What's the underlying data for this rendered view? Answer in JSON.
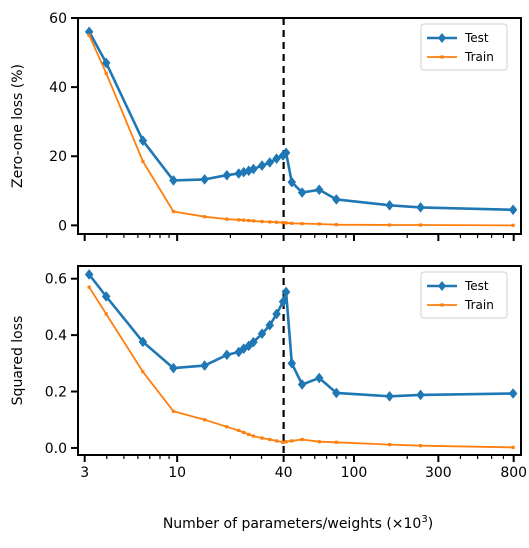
{
  "xlabel_prefix": "Number of parameters/weights (×10",
  "xlabel_exp": "3",
  "xlabel_suffix": ")",
  "colors": {
    "test": "#1f77b4",
    "train": "#ff7f0e",
    "vline": "#000000"
  },
  "chart_data": [
    {
      "type": "line",
      "title": "",
      "xlabel": "Number of parameters/weights (×10³)",
      "ylabel": "Zero-one loss (%)",
      "xscale": "log",
      "xlim": [
        2.75,
        880
      ],
      "ylim": [
        -2.5,
        60
      ],
      "yticks": [
        0,
        20,
        40,
        60
      ],
      "xticks": [
        3,
        10,
        40,
        100,
        300,
        800
      ],
      "xtick_labels_shown": false,
      "vline_x": 40,
      "legend_position": "top-right",
      "series": [
        {
          "name": "Test",
          "marker": "diamond",
          "x": [
            3.18,
            3.97,
            6.4,
            9.53,
            14.3,
            19.1,
            22.3,
            23.8,
            25.4,
            27.0,
            30.2,
            33.4,
            36.5,
            39.7,
            41.3,
            44.5,
            50.9,
            63.6,
            79.5,
            159,
            238,
            794
          ],
          "y": [
            56.0,
            47.0,
            24.5,
            13.0,
            13.3,
            14.5,
            15.0,
            15.4,
            15.8,
            16.3,
            17.3,
            18.2,
            19.3,
            20.2,
            21.0,
            12.5,
            9.5,
            10.3,
            7.5,
            5.8,
            5.2,
            4.5
          ]
        },
        {
          "name": "Train",
          "marker": "small-square",
          "x": [
            3.18,
            3.97,
            6.4,
            9.53,
            14.3,
            19.1,
            22.3,
            23.8,
            25.4,
            27.0,
            30.2,
            33.4,
            36.5,
            39.7,
            41.3,
            44.5,
            50.9,
            63.6,
            79.5,
            159,
            238,
            794
          ],
          "y": [
            55.0,
            44.0,
            18.5,
            4.0,
            2.5,
            1.8,
            1.6,
            1.5,
            1.4,
            1.3,
            1.1,
            1.0,
            0.9,
            0.8,
            0.7,
            0.6,
            0.5,
            0.4,
            0.2,
            0.1,
            0.1,
            0.0
          ]
        }
      ]
    },
    {
      "type": "line",
      "title": "",
      "xlabel": "Number of parameters/weights (×10³)",
      "ylabel": "Squared loss",
      "xscale": "log",
      "xlim": [
        2.75,
        880
      ],
      "ylim": [
        -0.025,
        0.645
      ],
      "yticks": [
        0.0,
        0.2,
        0.4,
        0.6
      ],
      "ytick_labels": [
        "0.0",
        "0.2",
        "0.4",
        "0.6"
      ],
      "xticks": [
        3,
        10,
        40,
        100,
        300,
        800
      ],
      "xtick_labels": [
        "3",
        "10",
        "40",
        "100",
        "300",
        "800"
      ],
      "vline_x": 40,
      "legend_position": "top-right",
      "series": [
        {
          "name": "Test",
          "marker": "diamond",
          "x": [
            3.18,
            3.97,
            6.4,
            9.53,
            14.3,
            19.1,
            22.3,
            23.8,
            25.4,
            27.0,
            30.2,
            33.4,
            36.5,
            39.7,
            41.3,
            44.5,
            50.9,
            63.6,
            79.5,
            159,
            238,
            794
          ],
          "y": [
            0.615,
            0.537,
            0.376,
            0.283,
            0.292,
            0.33,
            0.34,
            0.352,
            0.362,
            0.375,
            0.405,
            0.435,
            0.475,
            0.518,
            0.553,
            0.3,
            0.225,
            0.248,
            0.195,
            0.183,
            0.188,
            0.193
          ]
        },
        {
          "name": "Train",
          "marker": "small-square",
          "x": [
            3.18,
            3.97,
            6.4,
            9.53,
            14.3,
            19.1,
            22.3,
            23.8,
            25.4,
            27.0,
            30.2,
            33.4,
            36.5,
            39.7,
            41.3,
            44.5,
            50.9,
            63.6,
            79.5,
            159,
            238,
            794
          ],
          "y": [
            0.57,
            0.475,
            0.27,
            0.13,
            0.1,
            0.075,
            0.062,
            0.055,
            0.048,
            0.042,
            0.035,
            0.03,
            0.025,
            0.02,
            0.022,
            0.025,
            0.03,
            0.022,
            0.02,
            0.012,
            0.008,
            0.002
          ]
        }
      ]
    }
  ]
}
